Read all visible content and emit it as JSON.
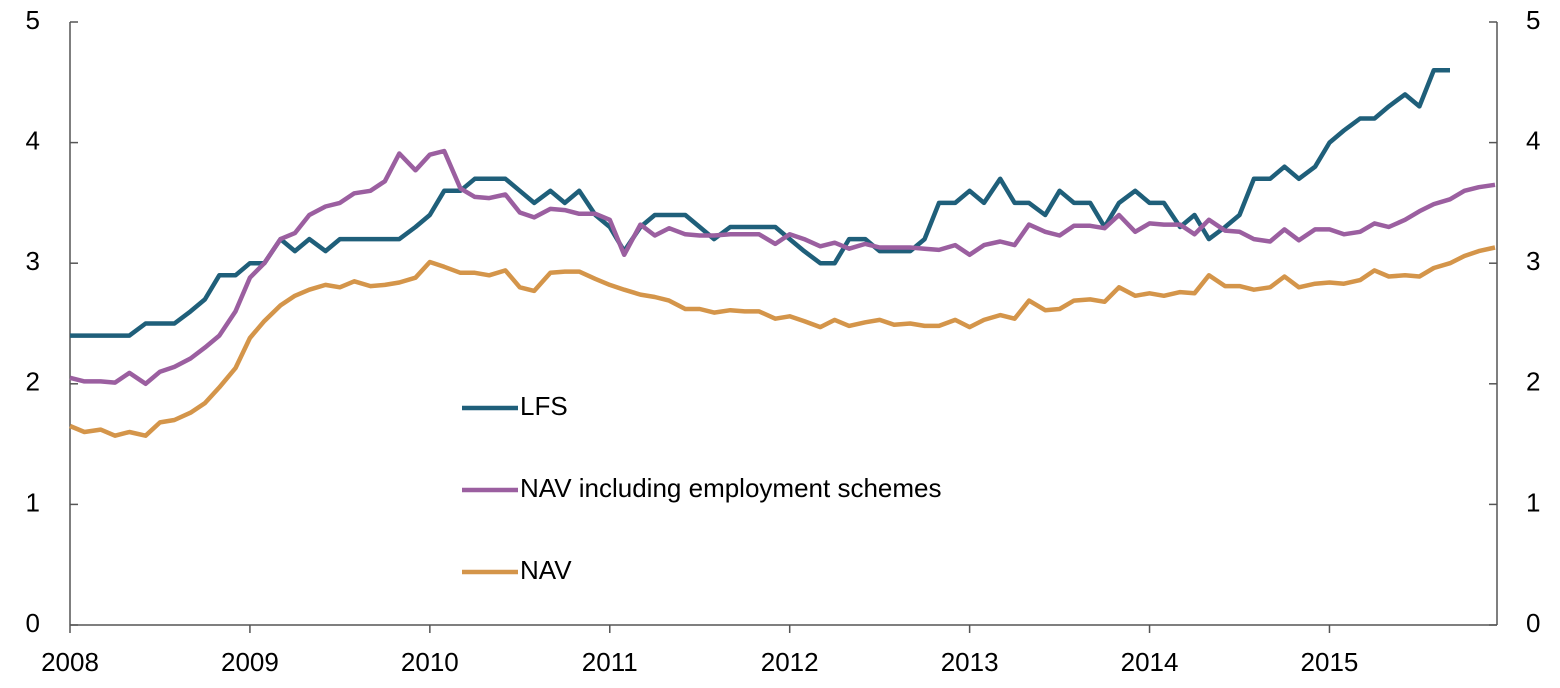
{
  "chart_data": {
    "type": "line",
    "x": [
      2008,
      2008.08,
      2008.17,
      2008.25,
      2008.33,
      2008.42,
      2008.5,
      2008.58,
      2008.67,
      2008.75,
      2008.83,
      2008.92,
      2009,
      2009.08,
      2009.17,
      2009.25,
      2009.33,
      2009.42,
      2009.5,
      2009.58,
      2009.67,
      2009.75,
      2009.83,
      2009.92,
      2010,
      2010.08,
      2010.17,
      2010.25,
      2010.33,
      2010.42,
      2010.5,
      2010.58,
      2010.67,
      2010.75,
      2010.83,
      2010.92,
      2011,
      2011.08,
      2011.17,
      2011.25,
      2011.33,
      2011.42,
      2011.5,
      2011.58,
      2011.67,
      2011.75,
      2011.83,
      2011.92,
      2012,
      2012.08,
      2012.17,
      2012.25,
      2012.33,
      2012.42,
      2012.5,
      2012.58,
      2012.67,
      2012.75,
      2012.83,
      2012.92,
      2013,
      2013.08,
      2013.17,
      2013.25,
      2013.33,
      2013.42,
      2013.5,
      2013.58,
      2013.67,
      2013.75,
      2013.83,
      2013.92,
      2014,
      2014.08,
      2014.17,
      2014.25,
      2014.33,
      2014.42,
      2014.5,
      2014.58,
      2014.67,
      2014.75,
      2014.83,
      2014.92,
      2015,
      2015.08,
      2015.17,
      2015.25,
      2015.33,
      2015.42,
      2015.5,
      2015.58,
      2015.67,
      2015.75,
      2015.83,
      2015.92
    ],
    "series": [
      {
        "name": "LFS",
        "color": "#1f5f7a",
        "values": [
          2.4,
          2.4,
          2.4,
          2.4,
          2.4,
          2.5,
          2.5,
          2.5,
          2.6,
          2.7,
          2.9,
          2.9,
          3.0,
          3.0,
          3.2,
          3.1,
          3.2,
          3.1,
          3.2,
          3.2,
          3.2,
          3.2,
          3.2,
          3.3,
          3.4,
          3.6,
          3.6,
          3.7,
          3.7,
          3.7,
          3.6,
          3.5,
          3.6,
          3.5,
          3.6,
          3.4,
          3.3,
          3.1,
          3.3,
          3.4,
          3.4,
          3.4,
          3.3,
          3.2,
          3.3,
          3.3,
          3.3,
          3.3,
          3.2,
          3.1,
          3.0,
          3.0,
          3.2,
          3.2,
          3.1,
          3.1,
          3.1,
          3.2,
          3.5,
          3.5,
          3.6,
          3.5,
          3.7,
          3.5,
          3.5,
          3.4,
          3.6,
          3.5,
          3.5,
          3.3,
          3.5,
          3.6,
          3.5,
          3.5,
          3.3,
          3.4,
          3.2,
          3.3,
          3.4,
          3.7,
          3.7,
          3.8,
          3.7,
          3.8,
          4.0,
          4.1,
          4.2,
          4.2,
          4.3,
          4.4,
          4.3,
          4.6,
          4.6,
          null,
          null,
          null
        ]
      },
      {
        "name": "NAV including employment schemes",
        "color": "#9b5fa0",
        "values": [
          2.05,
          2.02,
          2.02,
          2.01,
          2.09,
          2.0,
          2.1,
          2.14,
          2.21,
          2.3,
          2.4,
          2.6,
          2.88,
          3.0,
          3.2,
          3.25,
          3.4,
          3.47,
          3.5,
          3.58,
          3.6,
          3.68,
          3.91,
          3.77,
          3.9,
          3.93,
          3.62,
          3.55,
          3.54,
          3.57,
          3.42,
          3.38,
          3.45,
          3.44,
          3.41,
          3.41,
          3.36,
          3.07,
          3.32,
          3.23,
          3.29,
          3.24,
          3.23,
          3.23,
          3.24,
          3.24,
          3.24,
          3.16,
          3.24,
          3.2,
          3.14,
          3.17,
          3.12,
          3.16,
          3.13,
          3.13,
          3.13,
          3.12,
          3.11,
          3.15,
          3.07,
          3.15,
          3.18,
          3.15,
          3.32,
          3.26,
          3.23,
          3.31,
          3.31,
          3.29,
          3.4,
          3.26,
          3.33,
          3.32,
          3.32,
          3.24,
          3.36,
          3.27,
          3.26,
          3.2,
          3.18,
          3.28,
          3.19,
          3.28,
          3.28,
          3.24,
          3.26,
          3.33,
          3.3,
          3.36,
          3.43,
          3.49,
          3.53,
          3.6,
          3.63,
          3.65
        ]
      },
      {
        "name": "NAV",
        "color": "#d4954a",
        "values": [
          1.65,
          1.6,
          1.62,
          1.57,
          1.6,
          1.57,
          1.68,
          1.7,
          1.76,
          1.84,
          1.97,
          2.13,
          2.38,
          2.52,
          2.65,
          2.73,
          2.78,
          2.82,
          2.8,
          2.85,
          2.81,
          2.82,
          2.84,
          2.88,
          3.01,
          2.97,
          2.92,
          2.92,
          2.9,
          2.94,
          2.8,
          2.77,
          2.92,
          2.93,
          2.93,
          2.87,
          2.82,
          2.78,
          2.74,
          2.72,
          2.69,
          2.62,
          2.62,
          2.59,
          2.61,
          2.6,
          2.6,
          2.54,
          2.56,
          2.52,
          2.47,
          2.53,
          2.48,
          2.51,
          2.53,
          2.49,
          2.5,
          2.48,
          2.48,
          2.53,
          2.47,
          2.53,
          2.57,
          2.54,
          2.69,
          2.61,
          2.62,
          2.69,
          2.7,
          2.68,
          2.8,
          2.73,
          2.75,
          2.73,
          2.76,
          2.75,
          2.9,
          2.81,
          2.81,
          2.78,
          2.8,
          2.89,
          2.8,
          2.83,
          2.84,
          2.83,
          2.86,
          2.94,
          2.89,
          2.9,
          2.89,
          2.96,
          3.0,
          3.06,
          3.1,
          3.13
        ]
      }
    ],
    "xlim": [
      2008,
      2015.92
    ],
    "xticks": [
      2008,
      2009,
      2010,
      2011,
      2012,
      2013,
      2014,
      2015
    ],
    "ylim": [
      0,
      5
    ],
    "yticks": [
      0,
      1,
      2,
      3,
      4,
      5
    ],
    "y2lim": [
      0,
      5
    ],
    "y2ticks": [
      0,
      1,
      2,
      3,
      4,
      5
    ]
  }
}
